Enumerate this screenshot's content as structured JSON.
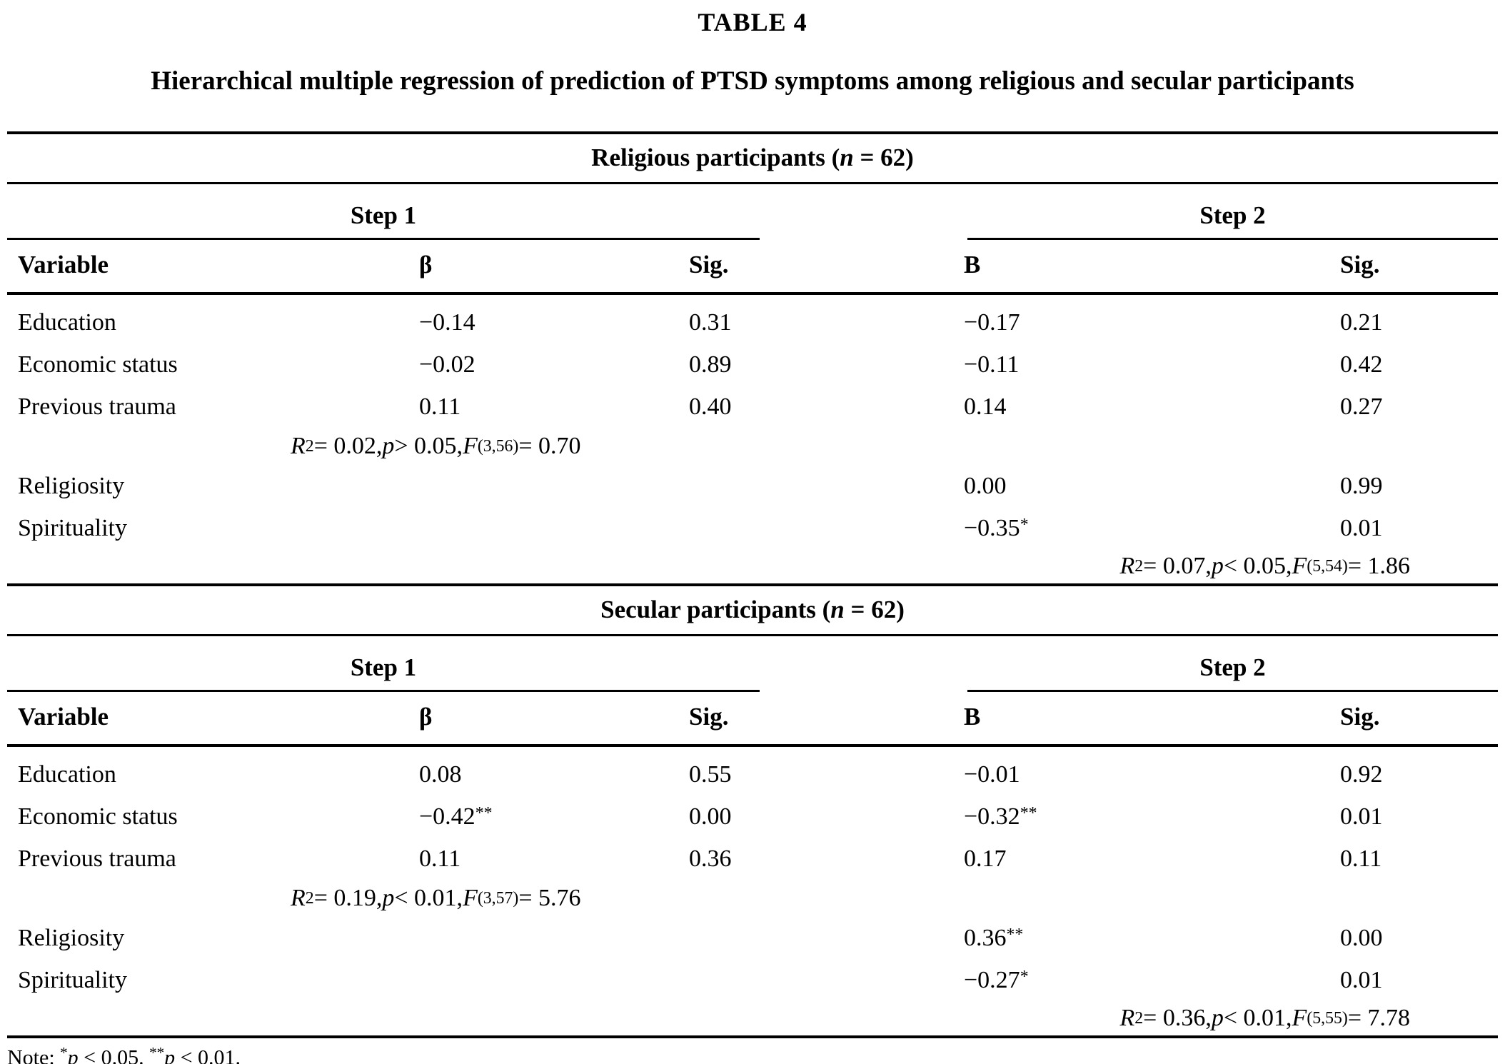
{
  "colors": {
    "text": "#000000",
    "background": "#ffffff"
  },
  "title": "TABLE 4",
  "subtitle": "Hierarchical multiple regression of prediction of PTSD symptoms among religious and secular participants",
  "steps": {
    "step1": "Step 1",
    "step2": "Step 2"
  },
  "columns": {
    "variable": "Variable",
    "beta": "β",
    "sig": "Sig.",
    "b": "B",
    "sig2": "Sig."
  },
  "sections": [
    {
      "header_runs": [
        {
          "t": "Religious participants ("
        },
        {
          "t": "n",
          "i": 1
        },
        {
          "t": " = 62)"
        }
      ],
      "rows": [
        {
          "variable": "Education",
          "beta": "−0.14",
          "sig": "0.31",
          "b": "−0.17",
          "sig2": "0.21"
        },
        {
          "variable": "Economic status",
          "beta": "−0.02",
          "sig": "0.89",
          "b": "−0.11",
          "sig2": "0.42"
        },
        {
          "variable": "Previous trauma",
          "beta": "0.11",
          "sig": "0.40",
          "b": "0.14",
          "sig2": "0.27"
        }
      ],
      "step1_stats_runs": [
        {
          "t": "R",
          "i": 1
        },
        {
          "t": "2",
          "sup": 1
        },
        {
          "t": " = 0.02, "
        },
        {
          "t": "p",
          "i": 1
        },
        {
          "t": " > 0.05, "
        },
        {
          "t": "F",
          "i": 1
        },
        {
          "t": "(3,56)",
          "sub": 1
        },
        {
          "t": " = 0.70"
        }
      ],
      "rows2": [
        {
          "variable": "Religiosity",
          "b": "0.00",
          "sig2": "0.99"
        },
        {
          "variable": "Spirituality",
          "b": [
            {
              "t": "−0.35"
            },
            {
              "t": "*",
              "sup": 1
            }
          ],
          "sig2": "0.01"
        }
      ],
      "step2_stats_runs": [
        {
          "t": "R",
          "i": 1
        },
        {
          "t": "2",
          "sup": 1
        },
        {
          "t": " = 0.07, "
        },
        {
          "t": "p",
          "i": 1
        },
        {
          "t": " < 0.05, "
        },
        {
          "t": "F",
          "i": 1
        },
        {
          "t": "(5,54)",
          "sub": 1
        },
        {
          "t": " = 1.86"
        }
      ]
    },
    {
      "header_runs": [
        {
          "t": "Secular participants ("
        },
        {
          "t": "n",
          "i": 1
        },
        {
          "t": " = 62)"
        }
      ],
      "rows": [
        {
          "variable": "Education",
          "beta": "0.08",
          "sig": "0.55",
          "b": "−0.01",
          "sig2": "0.92"
        },
        {
          "variable": "Economic status",
          "beta": [
            {
              "t": "−0.42"
            },
            {
              "t": "**",
              "sup": 1
            }
          ],
          "sig": "0.00",
          "b": [
            {
              "t": "−0.32"
            },
            {
              "t": "**",
              "sup": 1
            }
          ],
          "sig2": "0.01"
        },
        {
          "variable": "Previous trauma",
          "beta": "0.11",
          "sig": "0.36",
          "b": "0.17",
          "sig2": "0.11"
        }
      ],
      "step1_stats_runs": [
        {
          "t": "R",
          "i": 1
        },
        {
          "t": "2",
          "sup": 1
        },
        {
          "t": " = 0.19, "
        },
        {
          "t": "p",
          "i": 1
        },
        {
          "t": " < 0.01, "
        },
        {
          "t": "F",
          "i": 1
        },
        {
          "t": "(3,57)",
          "sub": 1
        },
        {
          "t": " = 5.76"
        }
      ],
      "rows2": [
        {
          "variable": "Religiosity",
          "b": [
            {
              "t": "0.36"
            },
            {
              "t": "**",
              "sup": 1
            }
          ],
          "sig2": "0.00"
        },
        {
          "variable": "Spirituality",
          "b": [
            {
              "t": "−0.27"
            },
            {
              "t": "*",
              "sup": 1
            }
          ],
          "sig2": "0.01"
        }
      ],
      "step2_stats_runs": [
        {
          "t": "R",
          "i": 1
        },
        {
          "t": "2",
          "sup": 1
        },
        {
          "t": " = 0.36, "
        },
        {
          "t": "p",
          "i": 1
        },
        {
          "t": " < 0.01, "
        },
        {
          "t": "F",
          "i": 1
        },
        {
          "t": "(5,55)",
          "sub": 1
        },
        {
          "t": " = 7.78"
        }
      ]
    }
  ],
  "note_runs": [
    {
      "t": "Note: "
    },
    {
      "t": "*",
      "sup": 1
    },
    {
      "t": "p",
      "i": 1
    },
    {
      "t": " < 0.05. "
    },
    {
      "t": "**",
      "sup": 1
    },
    {
      "t": "p",
      "i": 1
    },
    {
      "t": " < 0.01."
    }
  ]
}
